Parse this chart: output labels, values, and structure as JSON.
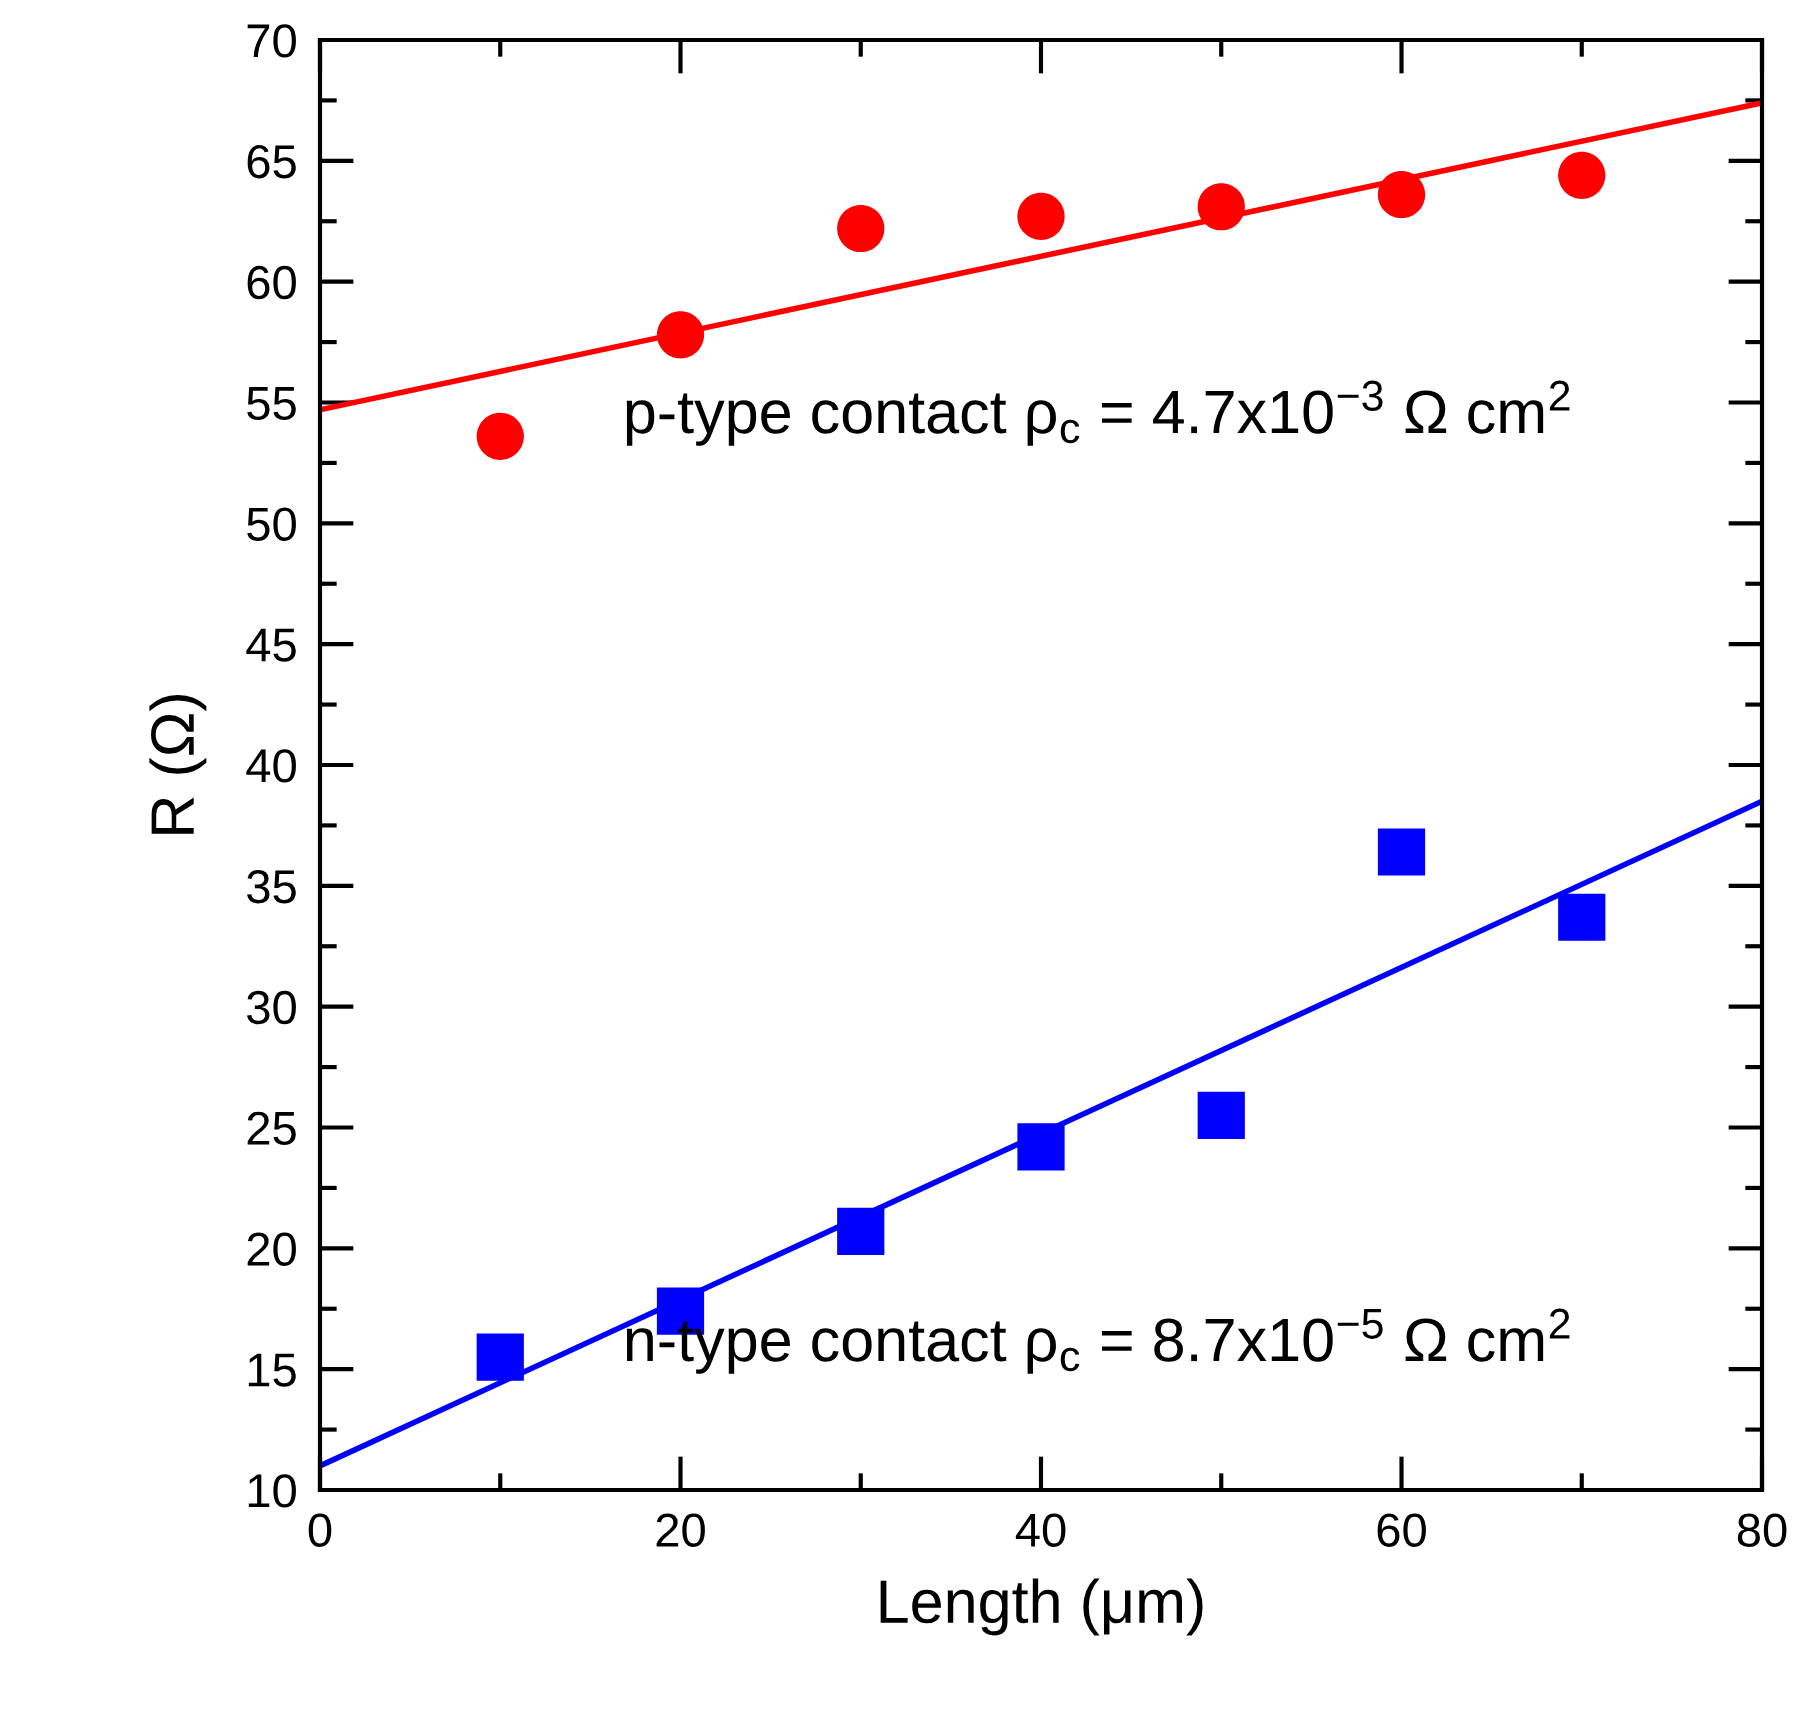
{
  "chart_data": {
    "type": "scatter",
    "xlabel": "Length (μm)",
    "ylabel": "R (Ω)",
    "xlim": [
      0,
      80
    ],
    "ylim": [
      10,
      70
    ],
    "xticks": [
      0,
      {
        "value": 10,
        "label": null
      },
      20,
      {
        "value": 30,
        "label": null
      },
      40,
      {
        "value": 50,
        "label": null
      },
      60,
      {
        "value": 70,
        "label": null
      },
      80
    ],
    "yticks": [
      10,
      {
        "value": 12.5,
        "label": null
      },
      15,
      {
        "value": 17.5,
        "label": null
      },
      20,
      {
        "value": 22.5,
        "label": null
      },
      25,
      {
        "value": 27.5,
        "label": null
      },
      30,
      {
        "value": 32.5,
        "label": null
      },
      35,
      {
        "value": 37.5,
        "label": null
      },
      40,
      {
        "value": 42.5,
        "label": null
      },
      45,
      {
        "value": 47.5,
        "label": null
      },
      50,
      {
        "value": 52.5,
        "label": null
      },
      55,
      {
        "value": 57.5,
        "label": null
      },
      60,
      {
        "value": 62.5,
        "label": null
      },
      65,
      {
        "value": 67.5,
        "label": null
      },
      70
    ],
    "grid": false,
    "legend": false,
    "series": [
      {
        "marker": "circle",
        "color": "#ff0000",
        "x": [
          10,
          20,
          30,
          40,
          50,
          60,
          70
        ],
        "values": [
          53.6,
          57.8,
          62.2,
          62.7,
          63.1,
          63.6,
          64.4
        ]
      },
      {
        "type": "line",
        "color": "#ff0000",
        "x": [
          0,
          80
        ],
        "values": [
          54.7,
          67.4
        ]
      },
      {
        "marker": "square",
        "color": "#0000ff",
        "x": [
          10,
          20,
          30,
          40,
          50,
          60,
          70
        ],
        "values": [
          15.5,
          17.4,
          20.7,
          24.2,
          25.5,
          36.4,
          33.7
        ]
      },
      {
        "type": "line",
        "color": "#0000ff",
        "x": [
          0,
          80
        ],
        "values": [
          11.0,
          38.5
        ]
      }
    ],
    "annotations": [
      "p-type contact ρ$_{c}$ = 4.7x10$^{−3}$ Ω cm$^{2}$",
      "n-type contact ρ$_{c}$ = 8.7x10$^{−5}$ Ω cm$^{2}$"
    ]
  }
}
